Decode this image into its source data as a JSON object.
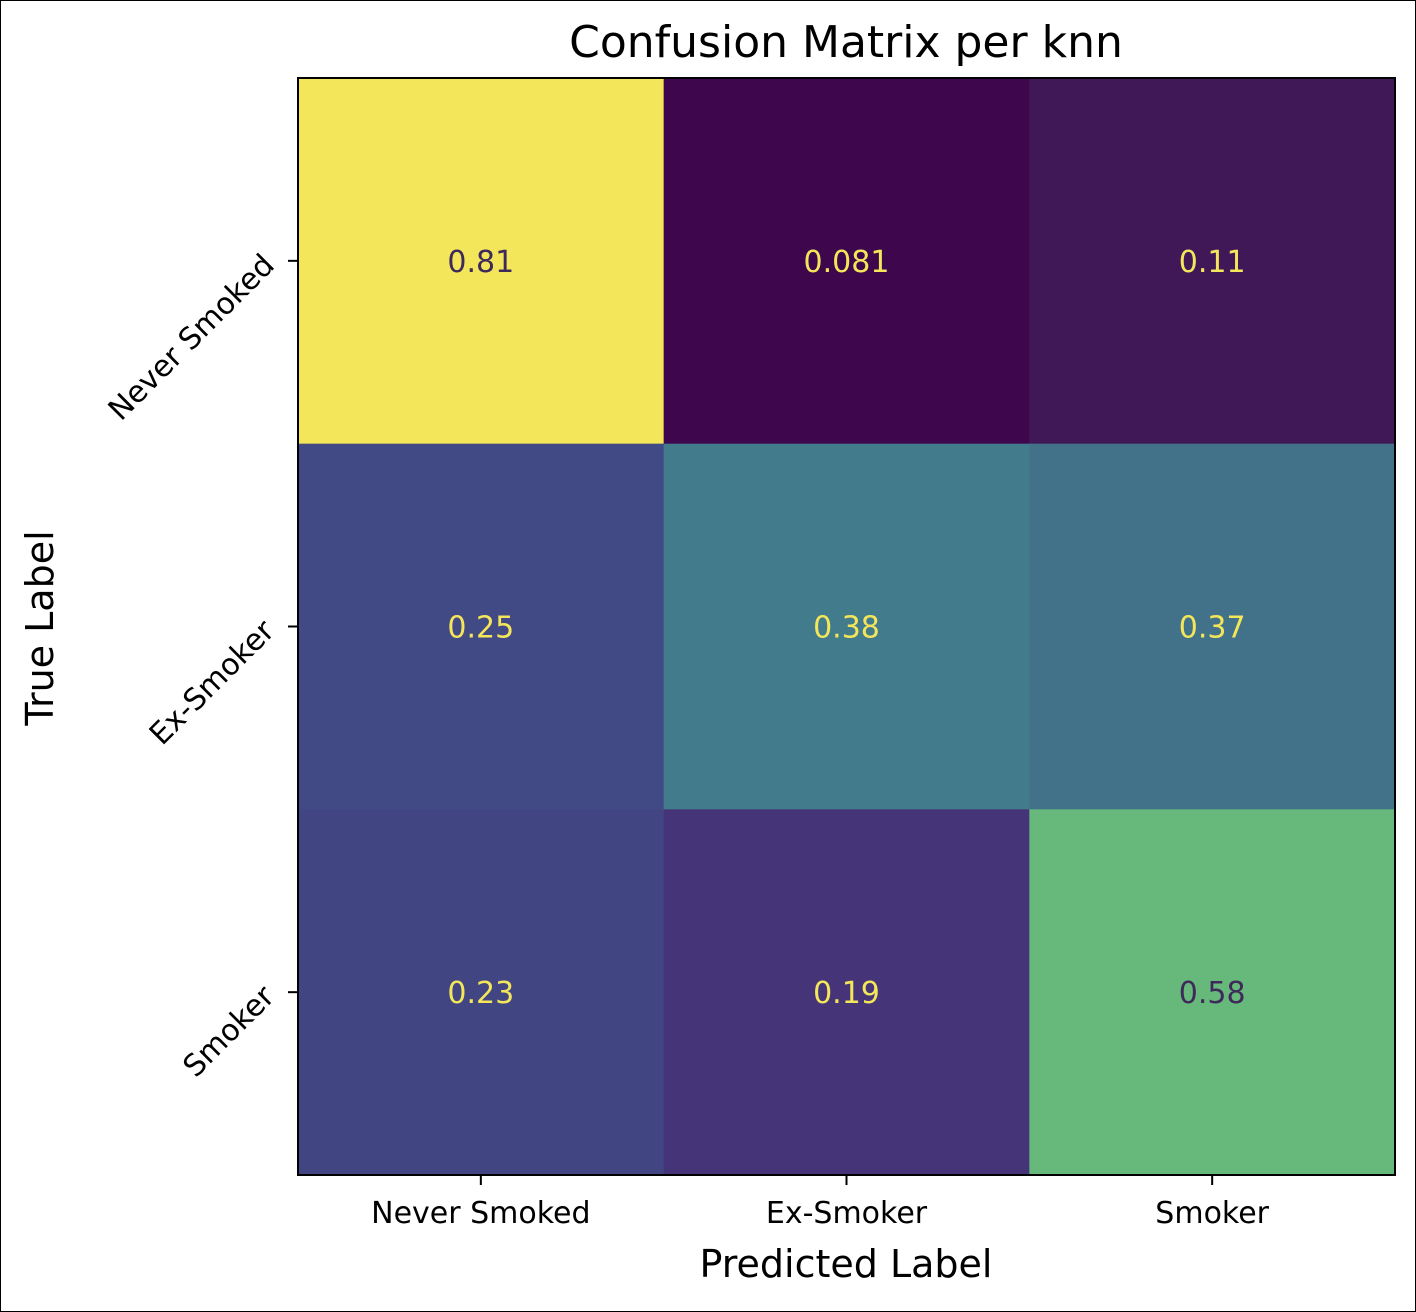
{
  "chart_data": {
    "type": "heatmap",
    "title": "Confusion Matrix per knn",
    "xlabel": "Predicted Label",
    "ylabel": "True Label",
    "x_categories": [
      "Never Smoked",
      "Ex-Smoker",
      "Smoker"
    ],
    "y_categories": [
      "Never Smoked",
      "Ex-Smoker",
      "Smoker"
    ],
    "values": [
      [
        0.81,
        0.081,
        0.11
      ],
      [
        0.25,
        0.38,
        0.37
      ],
      [
        0.23,
        0.19,
        0.58
      ]
    ],
    "value_labels": [
      [
        "0.81",
        "0.081",
        "0.11"
      ],
      [
        "0.25",
        "0.38",
        "0.37"
      ],
      [
        "0.23",
        "0.19",
        "0.58"
      ]
    ],
    "colormap": "viridis",
    "colorbar": false,
    "y_tick_rotation_deg": 45,
    "colors": {
      "cells": [
        [
          "#f4e65a",
          "#3e064d",
          "#401858"
        ],
        [
          "#414a84",
          "#427b8b",
          "#41728a"
        ],
        [
          "#414683",
          "#463479",
          "#66b97b"
        ]
      ],
      "text_on_dark": "#f4e65a",
      "text_on_light": "#3e2a5a"
    }
  }
}
